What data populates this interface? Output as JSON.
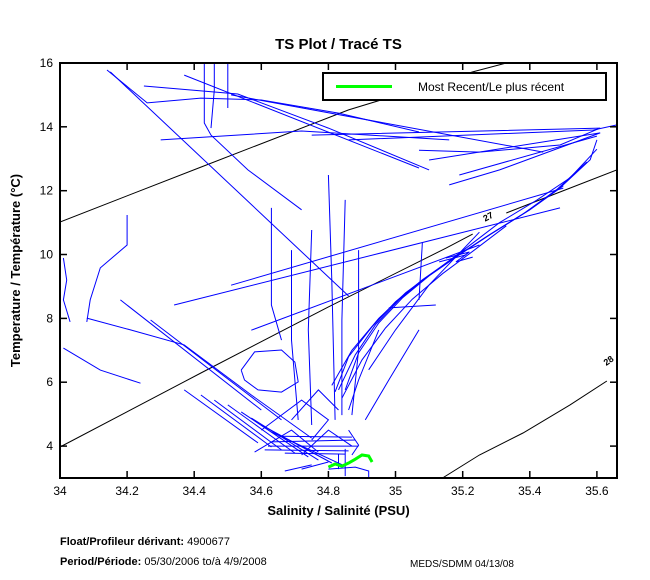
{
  "title": "TS Plot / Tracé TS",
  "legend": {
    "label": "Most Recent/Le plus récent"
  },
  "footer": {
    "float_label": "Float/Profileur dérivant:",
    "float_value": " 4900677",
    "period_label": "Period/Période:",
    "period_value": " 05/30/2006 to/à  4/9/2008",
    "credit": "MEDS/SDMM  04/13/08"
  },
  "chart_data": {
    "type": "line",
    "title": "TS Plot / Tracé TS",
    "xlabel": "Salinity / Salinité (PSU)",
    "ylabel": "Temperature / Température (°C)",
    "xlim": [
      34,
      35.66
    ],
    "ylim": [
      3,
      16
    ],
    "grid": false,
    "legend_position": "upper center",
    "x_ticks": [
      34,
      34.2,
      34.4,
      34.6,
      34.8,
      35,
      35.2,
      35.4,
      35.6
    ],
    "x_tick_labels": [
      "34",
      "34.2",
      "34.4",
      "34.6",
      "34.8",
      "35",
      "35.2",
      "35.4",
      "35.6"
    ],
    "y_ticks": [
      4,
      6,
      8,
      10,
      12,
      14,
      16
    ],
    "y_tick_labels": [
      "4",
      "6",
      "8",
      "10",
      "12",
      "14",
      "16"
    ],
    "colors": {
      "profiles": "#0000FF",
      "most_recent": "#00FF00",
      "contours": "#000000",
      "axes": "#000000"
    },
    "contour_labels": [
      {
        "text": "27",
        "S": 35.28,
        "T": 11.1,
        "rot": -28
      },
      {
        "text": "28",
        "S": 35.64,
        "T": 6.6,
        "rot": -35
      }
    ],
    "contours": [
      [
        [
          34.0,
          11.02
        ],
        [
          34.42,
          12.74
        ],
        [
          34.86,
          14.53
        ],
        [
          35.23,
          15.72
        ],
        [
          35.33,
          16.0
        ]
      ],
      [
        [
          34.0,
          3.97
        ],
        [
          34.42,
          6.29
        ],
        [
          34.8,
          8.36
        ],
        [
          35.15,
          10.2
        ],
        [
          35.23,
          10.64
        ]
      ],
      [
        [
          35.33,
          11.3
        ],
        [
          35.49,
          11.96
        ],
        [
          35.66,
          12.65
        ]
      ],
      [
        [
          35.14,
          3.0
        ],
        [
          35.25,
          3.72
        ],
        [
          35.38,
          4.41
        ],
        [
          35.52,
          5.29
        ],
        [
          35.63,
          6.04
        ]
      ]
    ],
    "most_recent": [
      [
        34.8,
        3.34
      ],
      [
        34.82,
        3.44
      ],
      [
        34.84,
        3.37
      ],
      [
        34.86,
        3.47
      ],
      [
        34.88,
        3.59
      ],
      [
        34.9,
        3.72
      ],
      [
        34.92,
        3.69
      ],
      [
        34.93,
        3.5
      ]
    ],
    "profiles": [
      [
        [
          34.15,
          15.72
        ],
        [
          34.86,
          8.7
        ]
      ],
      [
        [
          34.43,
          16
        ],
        [
          34.43,
          14.12
        ],
        [
          34.45,
          13.74
        ],
        [
          34.56,
          12.65
        ],
        [
          34.72,
          11.4
        ]
      ],
      [
        [
          34.46,
          16
        ],
        [
          34.46,
          15.15
        ],
        [
          34.45,
          13.96
        ]
      ],
      [
        [
          34.14,
          15.78
        ],
        [
          34.26,
          14.75
        ],
        [
          34.42,
          14.9
        ],
        [
          34.6,
          14.84
        ],
        [
          34.83,
          14.43
        ],
        [
          35.07,
          13.84
        ]
      ],
      [
        [
          34.25,
          15.28
        ],
        [
          34.53,
          15.03
        ],
        [
          34.8,
          13.96
        ],
        [
          35.1,
          12.65
        ]
      ],
      [
        [
          34.37,
          15.62
        ],
        [
          35.07,
          12.71
        ]
      ],
      [
        [
          34.51,
          15.0
        ],
        [
          35.44,
          13.21
        ]
      ],
      [
        [
          34.3,
          13.59
        ],
        [
          34.72,
          13.87
        ],
        [
          35.16,
          13.59
        ]
      ],
      [
        [
          34.51,
          9.04
        ],
        [
          35.5,
          12.08
        ]
      ],
      [
        [
          34.34,
          8.42
        ],
        [
          35.49,
          11.46
        ]
      ],
      [
        [
          34.57,
          7.63
        ],
        [
          35.25,
          10.3
        ]
      ],
      [
        [
          34.5,
          16
        ],
        [
          34.5,
          14.59
        ]
      ],
      [
        [
          34.75,
          13.74
        ],
        [
          35.61,
          13.96
        ],
        [
          35.49,
          13.43
        ],
        [
          35.25,
          13.21
        ],
        [
          35.07,
          13.27
        ]
      ],
      [
        [
          34.86,
          13.59
        ],
        [
          35.59,
          13.9
        ],
        [
          35.66,
          14.06
        ]
      ],
      [
        [
          35.1,
          12.96
        ],
        [
          35.61,
          13.81
        ],
        [
          35.31,
          12.65
        ],
        [
          35.16,
          12.18
        ]
      ],
      [
        [
          35.19,
          12.49
        ],
        [
          35.6,
          13.71
        ]
      ],
      [
        [
          34.83,
          5.76
        ],
        [
          34.88,
          6.86
        ],
        [
          34.94,
          7.8
        ],
        [
          35.01,
          8.58
        ],
        [
          35.09,
          9.27
        ],
        [
          35.18,
          9.93
        ],
        [
          35.28,
          10.62
        ],
        [
          35.39,
          11.34
        ],
        [
          35.49,
          12.09
        ],
        [
          35.58,
          12.97
        ],
        [
          35.6,
          13.59
        ]
      ],
      [
        [
          34.85,
          5.76
        ],
        [
          34.89,
          6.92
        ],
        [
          34.95,
          7.86
        ],
        [
          35.02,
          8.64
        ],
        [
          35.1,
          9.33
        ],
        [
          35.19,
          9.99
        ],
        [
          35.29,
          10.68
        ],
        [
          35.4,
          11.4
        ],
        [
          35.5,
          12.15
        ]
      ],
      [
        [
          34.82,
          5.7
        ],
        [
          34.86,
          6.8
        ],
        [
          34.93,
          7.74
        ],
        [
          35.0,
          8.52
        ],
        [
          35.08,
          9.21
        ],
        [
          35.17,
          9.87
        ],
        [
          35.27,
          10.55
        ],
        [
          35.38,
          11.27
        ],
        [
          35.48,
          12.03
        ],
        [
          35.57,
          12.9
        ]
      ],
      [
        [
          34.84,
          5.5
        ],
        [
          34.9,
          6.7
        ],
        [
          34.97,
          7.7
        ],
        [
          35.05,
          8.6
        ],
        [
          35.14,
          9.4
        ],
        [
          35.23,
          10.1
        ],
        [
          35.33,
          10.9
        ]
      ],
      [
        [
          34.81,
          5.9
        ],
        [
          34.87,
          7.0
        ],
        [
          34.95,
          8.0
        ],
        [
          35.03,
          8.8
        ],
        [
          35.12,
          9.5
        ],
        [
          35.21,
          10.2
        ],
        [
          35.31,
          11.0
        ],
        [
          35.42,
          11.7
        ],
        [
          35.52,
          12.4
        ],
        [
          35.6,
          13.3
        ]
      ],
      [
        [
          35.25,
          10.7
        ],
        [
          35.1,
          9.05
        ],
        [
          35.0,
          7.64
        ],
        [
          34.92,
          6.39
        ]
      ],
      [
        [
          35.15,
          9.89
        ],
        [
          35.22,
          10.08
        ],
        [
          35.18,
          9.77
        ],
        [
          35.23,
          9.92
        ]
      ],
      [
        [
          35.13,
          9.77
        ],
        [
          35.21,
          9.99
        ]
      ],
      [
        [
          34.98,
          8.33
        ],
        [
          35.12,
          8.42
        ]
      ],
      [
        [
          35.08,
          10.39
        ],
        [
          35.07,
          8.58
        ]
      ],
      [
        [
          34.01,
          9.89
        ],
        [
          34.02,
          9.2
        ],
        [
          34.01,
          8.58
        ],
        [
          34.03,
          7.89
        ]
      ],
      [
        [
          34.2,
          11.24
        ],
        [
          34.2,
          10.3
        ],
        [
          34.12,
          9.58
        ],
        [
          34.09,
          8.58
        ],
        [
          34.08,
          7.89
        ]
      ],
      [
        [
          34.08,
          8.01
        ],
        [
          34.21,
          7.64
        ],
        [
          34.37,
          7.17
        ],
        [
          34.57,
          5.6
        ],
        [
          34.75,
          4.25
        ]
      ],
      [
        [
          34.01,
          7.07
        ],
        [
          34.12,
          6.38
        ],
        [
          34.24,
          5.97
        ]
      ],
      [
        [
          34.63,
          11.46
        ],
        [
          34.63,
          8.42
        ],
        [
          34.66,
          7.32
        ]
      ],
      [
        [
          34.69,
          10.14
        ],
        [
          34.69,
          7.32
        ],
        [
          34.71,
          4.82
        ]
      ],
      [
        [
          34.75,
          10.77
        ],
        [
          34.74,
          7.64
        ],
        [
          34.75,
          4.66
        ]
      ],
      [
        [
          34.8,
          12.49
        ],
        [
          34.81,
          9.2
        ],
        [
          34.82,
          4.82
        ]
      ],
      [
        [
          34.85,
          11.71
        ],
        [
          34.84,
          7.95
        ],
        [
          34.84,
          4.97
        ]
      ],
      [
        [
          34.89,
          10.14
        ],
        [
          34.89,
          7.01
        ],
        [
          34.87,
          4.97
        ]
      ],
      [
        [
          34.54,
          6.38
        ],
        [
          34.58,
          6.95
        ],
        [
          34.66,
          7.01
        ],
        [
          34.7,
          6.63
        ],
        [
          34.71,
          6.01
        ],
        [
          34.66,
          5.69
        ],
        [
          34.59,
          5.76
        ],
        [
          34.55,
          6.07
        ],
        [
          34.54,
          6.38
        ]
      ],
      [
        [
          34.37,
          5.76
        ],
        [
          34.59,
          4.1
        ]
      ],
      [
        [
          34.42,
          5.6
        ],
        [
          34.63,
          3.97
        ]
      ],
      [
        [
          34.46,
          5.44
        ],
        [
          34.66,
          3.88
        ]
      ],
      [
        [
          34.5,
          5.29
        ],
        [
          34.7,
          3.78
        ]
      ],
      [
        [
          34.54,
          5.07
        ],
        [
          34.74,
          3.66
        ]
      ],
      [
        [
          34.57,
          4.88
        ],
        [
          34.77,
          3.56
        ]
      ],
      [
        [
          34.6,
          4.66
        ],
        [
          34.81,
          3.47
        ]
      ],
      [
        [
          34.63,
          4.44
        ],
        [
          34.85,
          3.37
        ]
      ],
      [
        [
          34.18,
          8.58
        ],
        [
          34.6,
          5.13
        ]
      ],
      [
        [
          34.27,
          7.95
        ],
        [
          34.66,
          4.82
        ]
      ],
      [
        [
          34.62,
          4.0
        ],
        [
          34.89,
          4.0
        ]
      ],
      [
        [
          34.63,
          4.13
        ],
        [
          34.88,
          4.19
        ]
      ],
      [
        [
          34.61,
          3.88
        ],
        [
          34.86,
          3.85
        ]
      ],
      [
        [
          34.66,
          4.31
        ],
        [
          34.87,
          4.28
        ]
      ],
      [
        [
          34.67,
          3.78
        ],
        [
          34.85,
          3.75
        ]
      ],
      [
        [
          34.86,
          4.5
        ],
        [
          34.89,
          4.03
        ],
        [
          34.87,
          3.72
        ]
      ],
      [
        [
          34.85,
          3.91
        ],
        [
          34.85,
          3.06
        ]
      ],
      [
        [
          34.83,
          3.75
        ],
        [
          34.83,
          3.28
        ]
      ],
      [
        [
          34.72,
          3.28
        ],
        [
          34.8,
          3.5
        ]
      ],
      [
        [
          34.67,
          3.22
        ],
        [
          34.75,
          3.41
        ]
      ],
      [
        [
          34.8,
          3.28
        ],
        [
          34.88,
          3.34
        ],
        [
          34.92,
          3.22
        ],
        [
          34.92,
          3.03
        ]
      ],
      [
        [
          34.6,
          4.5
        ],
        [
          34.72,
          5.44
        ],
        [
          34.8,
          4.82
        ],
        [
          34.75,
          4.19
        ]
      ],
      [
        [
          34.69,
          4.82
        ],
        [
          34.77,
          5.76
        ],
        [
          34.83,
          5.13
        ]
      ],
      [
        [
          34.72,
          3.72
        ],
        [
          34.8,
          4.5
        ],
        [
          34.87,
          4.0
        ]
      ],
      [
        [
          34.58,
          3.81
        ],
        [
          34.69,
          4.5
        ],
        [
          34.77,
          3.81
        ]
      ],
      [
        [
          34.95,
          7.64
        ],
        [
          34.89,
          6.07
        ],
        [
          34.86,
          5.13
        ]
      ],
      [
        [
          35.07,
          7.64
        ],
        [
          34.98,
          6.07
        ],
        [
          34.91,
          4.82
        ]
      ]
    ]
  }
}
